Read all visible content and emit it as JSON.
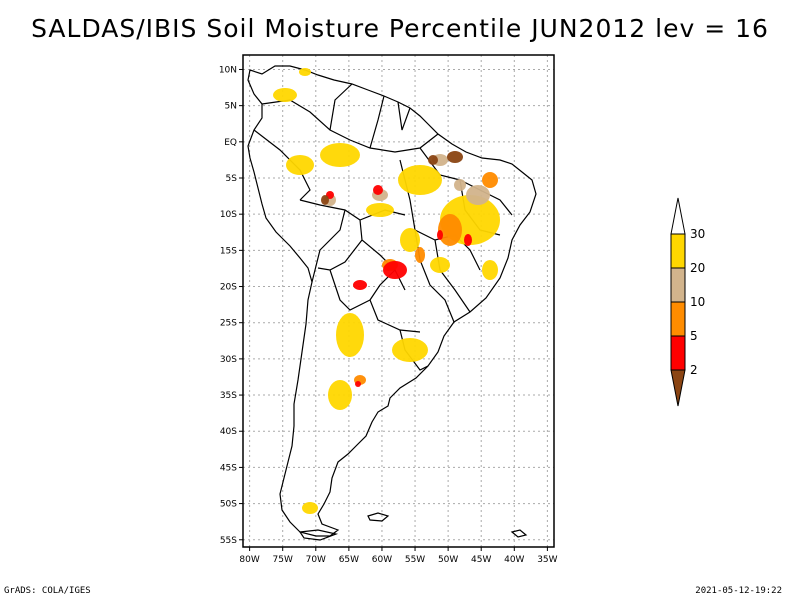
{
  "title": "SALDAS/IBIS Soil Moisture Percentile JUN2012 lev = 16",
  "map": {
    "lat_labels": [
      "10N",
      "5N",
      "EQ",
      "5S",
      "10S",
      "15S",
      "20S",
      "25S",
      "30S",
      "35S",
      "40S",
      "45S",
      "50S",
      "55S"
    ],
    "lon_labels": [
      "80W",
      "75W",
      "70W",
      "65W",
      "60W",
      "55W",
      "50W",
      "45W",
      "40W",
      "35W"
    ],
    "lat_range": [
      -56,
      12
    ],
    "lon_range": [
      -81,
      -34
    ]
  },
  "legend": {
    "breaks": [
      "2",
      "5",
      "10",
      "20",
      "30"
    ],
    "colors": [
      "#8b4513",
      "#ff0000",
      "#ff8c00",
      "#d2b48c",
      "#ffd700",
      "#ffffff"
    ]
  },
  "footer": {
    "left": "GrADS: COLA/IGES",
    "right": "2021-05-12-19:22"
  }
}
